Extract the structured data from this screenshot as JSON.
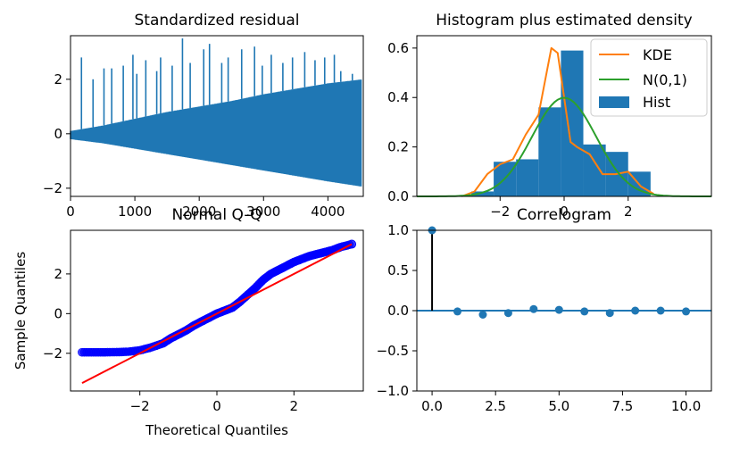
{
  "colors": {
    "blue": "#1f77b4",
    "orange": "#ff7f0e",
    "green": "#2ca02c",
    "red": "#ff0000",
    "qq_marker": "#0000ff"
  },
  "chart_data": [
    {
      "type": "line",
      "title": "Standardized residual",
      "xlabel": "",
      "ylabel": "",
      "xlim": [
        0,
        4550
      ],
      "ylim": [
        -2.3,
        3.6
      ],
      "xticks": [
        0,
        1000,
        2000,
        3000,
        4000
      ],
      "xtick_labels": [
        "0",
        "1000",
        "2000",
        "3000",
        "4000"
      ],
      "yticks": [
        -2,
        0,
        2
      ],
      "ytick_labels": [
        "−2",
        "0",
        "2"
      ],
      "series": [
        {
          "x": [
            0,
            500,
            1000,
            1500,
            2000,
            2500,
            3000,
            3500,
            4000,
            4550
          ],
          "upper": [
            0.1,
            0.3,
            0.55,
            0.8,
            1.0,
            1.2,
            1.45,
            1.65,
            1.85,
            2.0
          ],
          "lower": [
            -0.2,
            -0.35,
            -0.55,
            -0.75,
            -0.95,
            -1.15,
            -1.35,
            -1.55,
            -1.75,
            -1.95
          ]
        }
      ],
      "spikes": [
        {
          "x": 170,
          "y": 2.8
        },
        {
          "x": 350,
          "y": 2.0
        },
        {
          "x": 520,
          "y": 2.4
        },
        {
          "x": 640,
          "y": 2.4
        },
        {
          "x": 820,
          "y": 2.5
        },
        {
          "x": 970,
          "y": 2.9
        },
        {
          "x": 1030,
          "y": 2.2
        },
        {
          "x": 1170,
          "y": 2.7
        },
        {
          "x": 1340,
          "y": 2.3
        },
        {
          "x": 1400,
          "y": 2.8
        },
        {
          "x": 1580,
          "y": 2.5
        },
        {
          "x": 1740,
          "y": 3.5
        },
        {
          "x": 1860,
          "y": 2.6
        },
        {
          "x": 2070,
          "y": 3.1
        },
        {
          "x": 2160,
          "y": 3.3
        },
        {
          "x": 2350,
          "y": 2.6
        },
        {
          "x": 2450,
          "y": 2.8
        },
        {
          "x": 2660,
          "y": 3.1
        },
        {
          "x": 2860,
          "y": 3.2
        },
        {
          "x": 2980,
          "y": 2.5
        },
        {
          "x": 3120,
          "y": 2.9
        },
        {
          "x": 3300,
          "y": 2.6
        },
        {
          "x": 3450,
          "y": 2.8
        },
        {
          "x": 3640,
          "y": 3.0
        },
        {
          "x": 3800,
          "y": 2.7
        },
        {
          "x": 3950,
          "y": 2.8
        },
        {
          "x": 4100,
          "y": 2.9
        },
        {
          "x": 4200,
          "y": 2.3
        },
        {
          "x": 4380,
          "y": 2.2
        }
      ]
    },
    {
      "type": "bar",
      "title": "Histogram plus estimated density",
      "xlabel": "",
      "ylabel": "",
      "xlim": [
        -4.6,
        4.6
      ],
      "ylim": [
        0,
        0.65
      ],
      "xticks": [
        -2,
        0,
        2
      ],
      "xtick_labels": [
        "−2",
        "0",
        "2"
      ],
      "yticks": [
        0.0,
        0.2,
        0.4,
        0.6
      ],
      "ytick_labels": [
        "0.0",
        "0.2",
        "0.4",
        "0.6"
      ],
      "legend": {
        "placement": "top-right",
        "entries": [
          "KDE",
          "N(0,1)",
          "Hist"
        ]
      },
      "hist": {
        "edges": [
          -2.9,
          -2.2,
          -1.5,
          -0.8,
          -0.1,
          0.6,
          1.3,
          2.0,
          2.7
        ],
        "values": [
          0.02,
          0.14,
          0.15,
          0.36,
          0.59,
          0.21,
          0.18,
          0.1
        ]
      },
      "series": [
        {
          "name": "KDE",
          "x": [
            -3.2,
            -2.8,
            -2.4,
            -2.0,
            -1.6,
            -1.2,
            -0.8,
            -0.4,
            -0.2,
            0.0,
            0.2,
            0.4,
            0.8,
            1.2,
            1.6,
            2.0,
            2.4,
            2.8
          ],
          "y": [
            0.0,
            0.02,
            0.09,
            0.13,
            0.15,
            0.25,
            0.33,
            0.6,
            0.58,
            0.4,
            0.22,
            0.2,
            0.17,
            0.09,
            0.09,
            0.1,
            0.04,
            0.01
          ]
        },
        {
          "name": "N(0,1)",
          "function": "normal_pdf",
          "mean": 0,
          "sd": 1
        }
      ]
    },
    {
      "type": "scatter",
      "title": "Normal Q-Q",
      "xlabel": "Theoretical Quantiles",
      "ylabel": "Sample Quantiles",
      "xlim": [
        -3.8,
        3.8
      ],
      "ylim": [
        -3.9,
        4.2
      ],
      "xticks": [
        -2,
        0,
        2
      ],
      "xtick_labels": [
        "−2",
        "0",
        "2"
      ],
      "yticks": [
        -2,
        0,
        2
      ],
      "ytick_labels": [
        "−2",
        "0",
        "2"
      ],
      "points": {
        "x": [
          -3.5,
          -3.2,
          -2.9,
          -2.6,
          -2.3,
          -2.0,
          -1.7,
          -1.4,
          -1.2,
          -1.0,
          -0.8,
          -0.6,
          -0.4,
          -0.2,
          0.0,
          0.2,
          0.4,
          0.6,
          0.8,
          1.0,
          1.2,
          1.4,
          1.6,
          1.8,
          2.0,
          2.2,
          2.4,
          2.6,
          2.8,
          3.0,
          3.2,
          3.5
        ],
        "y": [
          -1.95,
          -1.95,
          -1.95,
          -1.94,
          -1.92,
          -1.85,
          -1.7,
          -1.5,
          -1.25,
          -1.05,
          -0.85,
          -0.6,
          -0.4,
          -0.2,
          0.0,
          0.15,
          0.3,
          0.6,
          0.95,
          1.3,
          1.7,
          2.0,
          2.2,
          2.4,
          2.6,
          2.75,
          2.9,
          3.0,
          3.1,
          3.2,
          3.35,
          3.5
        ]
      },
      "reference_line": {
        "x": [
          -3.5,
          3.5
        ],
        "y": [
          -3.5,
          3.5
        ]
      }
    },
    {
      "type": "scatter",
      "title": "Correlogram",
      "xlabel": "",
      "ylabel": "",
      "xlim": [
        -0.6,
        11
      ],
      "ylim": [
        -1.0,
        1.0
      ],
      "xticks": [
        0,
        2.5,
        5,
        7.5,
        10
      ],
      "xtick_labels": [
        "0.0",
        "2.5",
        "5.0",
        "7.5",
        "10.0"
      ],
      "yticks": [
        -1.0,
        -0.5,
        0.0,
        0.5,
        1.0
      ],
      "ytick_labels": [
        "−1.0",
        "−0.5",
        "0.0",
        "0.5",
        "1.0"
      ],
      "lags": [
        0,
        1,
        2,
        3,
        4,
        5,
        6,
        7,
        8,
        9,
        10
      ],
      "values": [
        1.0,
        -0.01,
        -0.05,
        -0.03,
        0.02,
        0.01,
        -0.01,
        -0.03,
        0.0,
        0.0,
        -0.01
      ]
    }
  ]
}
